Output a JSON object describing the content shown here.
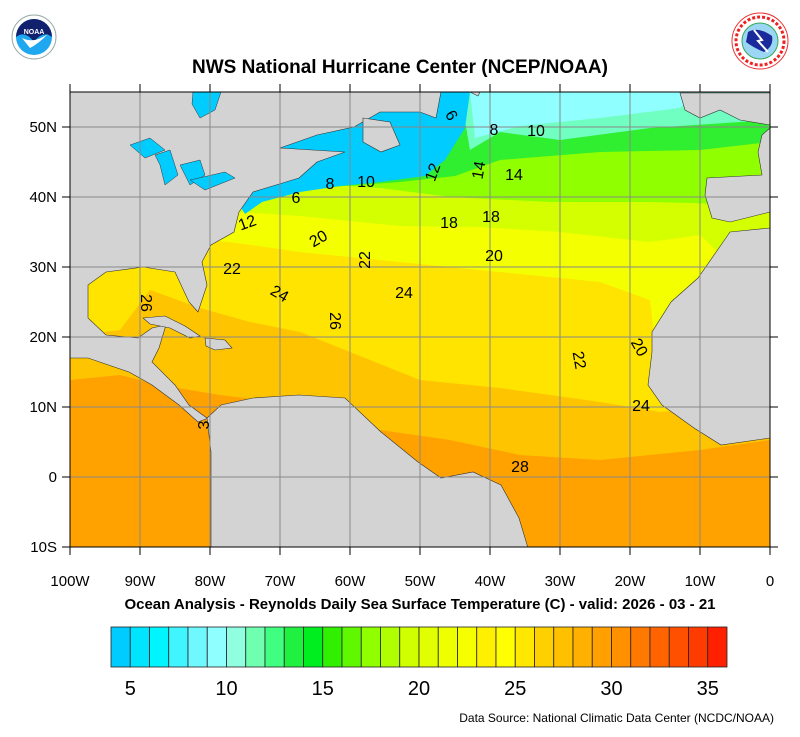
{
  "header": {
    "title": "NWS National Hurricane Center (NCEP/NOAA)",
    "left_logo": {
      "name": "noaa-logo",
      "text": "NOAA",
      "ring_text": "NATIONAL OCEANIC AND ATMOSPHERIC ADMINISTRATION - U.S. DEPARTMENT OF COMMERCE"
    },
    "right_logo": {
      "name": "nws-logo",
      "ring_text": "NATIONAL WEATHER SERVICE"
    }
  },
  "map": {
    "lat_labels": [
      "50N",
      "40N",
      "30N",
      "20N",
      "10N",
      "0",
      "10S"
    ],
    "lon_labels": [
      "100W",
      "90W",
      "80W",
      "70W",
      "60W",
      "50W",
      "40W",
      "30W",
      "20W",
      "10W",
      "0"
    ],
    "extent": {
      "lon": [
        -100,
        0
      ],
      "lat": [
        -10,
        55
      ]
    },
    "land_color": "#d3d3d3",
    "grid": true,
    "contour_labels": [
      "6",
      "8",
      "10",
      "12",
      "14",
      "14",
      "8",
      "10",
      "6",
      "12",
      "20",
      "22",
      "18",
      "18",
      "20",
      "22",
      "24",
      "24",
      "26",
      "26",
      "22",
      "20",
      "24",
      "28",
      "3"
    ]
  },
  "subtitle": "Ocean Analysis - Reynolds Daily Sea Surface Temperature (C) - valid: 2026 - 03 - 21",
  "colorbar": {
    "range": [
      4,
      36
    ],
    "tick_labels": [
      "5",
      "10",
      "15",
      "20",
      "25",
      "30",
      "35"
    ],
    "colors": [
      "#00ccff",
      "#00e5ff",
      "#00f5ff",
      "#40f5ff",
      "#70f8ff",
      "#90ffff",
      "#90ffe0",
      "#70ffb0",
      "#40ff80",
      "#20f040",
      "#00ee20",
      "#30f000",
      "#60f800",
      "#90ff00",
      "#b0ff00",
      "#d0ff00",
      "#e0ff00",
      "#eeff00",
      "#f5ff00",
      "#fff000",
      "#ffff00",
      "#ffe800",
      "#ffd000",
      "#ffc000",
      "#ffb000",
      "#ffa000",
      "#ff9000",
      "#ff7800",
      "#ff6400",
      "#ff5000",
      "#ff3c00",
      "#ff2000"
    ]
  },
  "footer": {
    "source": "Data Source: National Climatic Data Center (NCDC/NOAA)"
  }
}
